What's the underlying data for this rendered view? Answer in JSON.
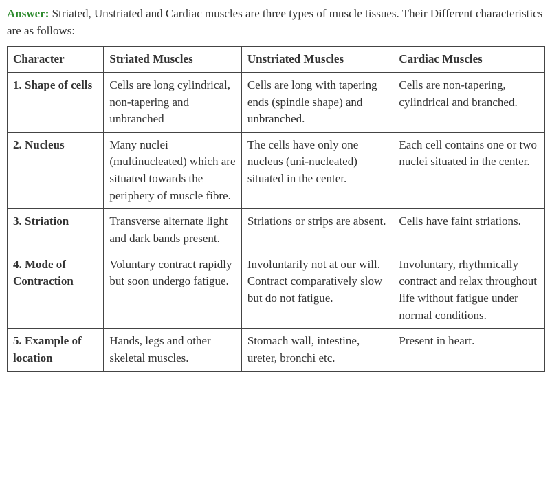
{
  "intro": {
    "answer_label": "Answer:",
    "text": " Striated, Unstriated and Cardiac muscles are three types of muscle tissues. Their Different characteristics are as follows:"
  },
  "table": {
    "headers": [
      "Character",
      "Striated Muscles",
      "Unstriated Muscles",
      "Cardiac Muscles"
    ],
    "rows": [
      {
        "character": "1. Shape of cells",
        "striated": "Cells are long cylindrical, non-tapering and unbranched",
        "unstriated": "Cells are long with tapering ends (spindle shape) and unbranched.",
        "cardiac": "Cells are non-tapering, cylindrical and branched."
      },
      {
        "character": "2. Nucleus",
        "striated": "Many nuclei (multinucleated) which are situated towards the periphery of muscle fibre.",
        "unstriated": "The cells have only one nucleus (uni-nucleated) situated in the center.",
        "cardiac": "Each cell contains one or two nuclei situated in the center."
      },
      {
        "character": "3. Striation",
        "striated": "Transverse alternate light and dark bands present.",
        "unstriated": "Striations or strips are absent.",
        "cardiac": "Cells have faint striations."
      },
      {
        "character": "4. Mode of Contraction",
        "striated": "Voluntary contract rapidly but soon undergo fatigue.",
        "unstriated": "Involuntarily not at our will. Contract comparatively slow but do not fatigue.",
        "cardiac": "Involuntary, rhythmically contract and relax throughout life without fatigue under normal conditions."
      },
      {
        "character": "5. Example of location",
        "striated": "Hands, legs and other skeletal muscles.",
        "unstriated": "Stomach wall, intestine, ureter, bronchi etc.",
        "cardiac": "Present in heart."
      }
    ]
  }
}
